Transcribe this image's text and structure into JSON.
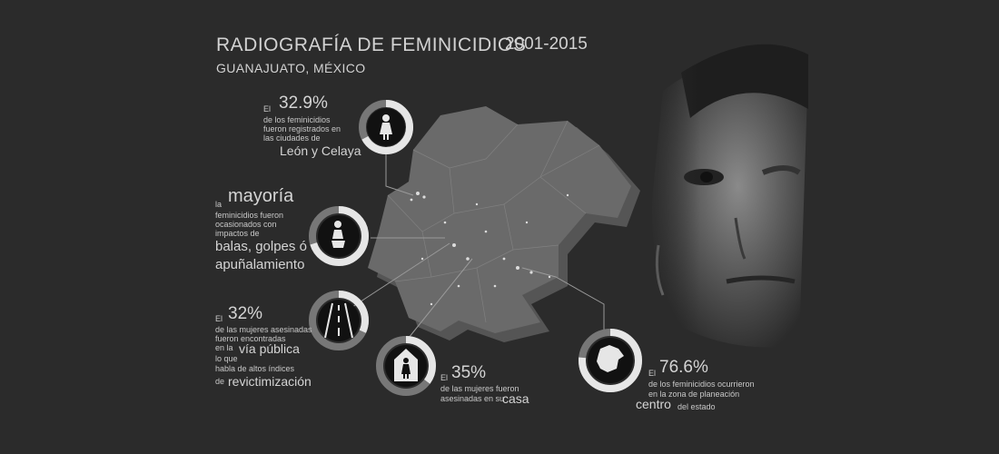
{
  "header": {
    "title": "RADIOGRAFÍA DE FEMINICIDIOS",
    "years": "2001-2015",
    "subtitle": "GUANAJUATO, MÉXICO"
  },
  "stats": {
    "leon": {
      "prefix": "El",
      "value": "32.9%",
      "line1": "de los feminicidios",
      "line2": "fueron registrados en",
      "line3": "las ciudades de",
      "highlight": "León y Celaya",
      "icon": "woman-icon",
      "fill": 0.329
    },
    "weapons": {
      "prefix": "la",
      "value": "mayoría",
      "line1": "feminicidios fueron",
      "line2": "ocasionados con",
      "line3": "impactos de",
      "highlight1": "balas, golpes ó",
      "highlight2": "apuñalamiento",
      "icon": "victim-icon",
      "fill": 0.7
    },
    "street": {
      "prefix": "El",
      "value": "32%",
      "line1": "de las mujeres asesinadas",
      "line2": "fueron encontradas",
      "line3a": "en la",
      "highlight1": "vía pública",
      "line4": "lo que",
      "line5": "habla de altos índices",
      "line6": "de",
      "highlight2": "revictimización",
      "icon": "road-icon",
      "fill": 0.32
    },
    "home": {
      "prefix": "El",
      "value": "35%",
      "line1": "de las mujeres fueron",
      "line2": "asesinadas en su",
      "highlight": "casa",
      "icon": "house-woman-icon",
      "fill": 0.35
    },
    "center": {
      "prefix": "El",
      "value": "76.6%",
      "line1": "de los feminicidios ocurrieron",
      "line2": "en la zona de planeación",
      "highlight": "centro",
      "line3": "del estado",
      "icon": "state-map-icon",
      "fill": 0.766
    }
  },
  "colors": {
    "background": "#2b2b2b",
    "ring": "#e6e6e6",
    "ring_dark": "#777777",
    "map": "#6a6a6a",
    "text": "#cfcfcf"
  },
  "images": {
    "map": "guanajuato-state-map",
    "portrait": "woman-portrait"
  }
}
